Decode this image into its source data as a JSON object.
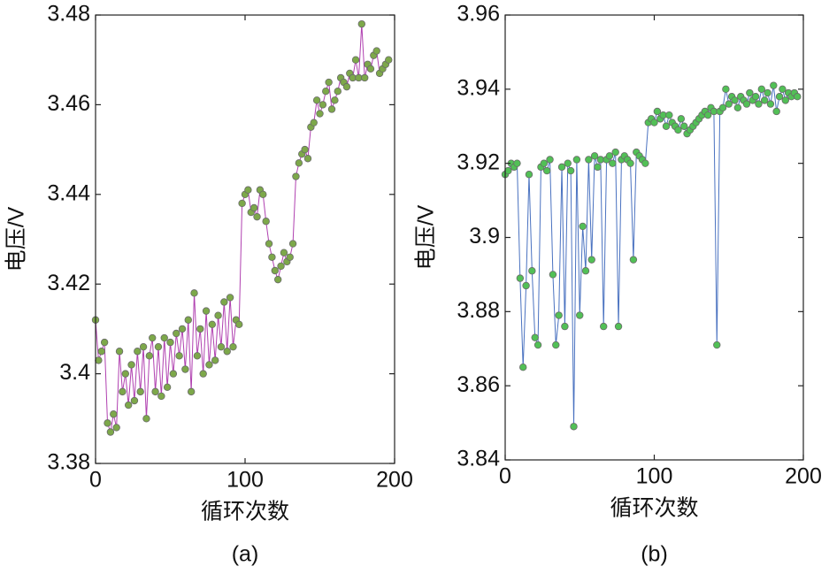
{
  "chart_data": [
    {
      "type": "line",
      "caption": "(a)",
      "xlabel": "循环次数",
      "ylabel": "电压/V",
      "x": [
        0,
        2,
        4,
        6,
        8,
        10,
        12,
        14,
        16,
        18,
        20,
        22,
        24,
        26,
        28,
        30,
        32,
        34,
        36,
        38,
        40,
        42,
        44,
        46,
        48,
        50,
        52,
        54,
        56,
        58,
        60,
        62,
        64,
        66,
        68,
        70,
        72,
        74,
        76,
        78,
        80,
        82,
        84,
        86,
        88,
        90,
        92,
        94,
        96,
        98,
        100,
        102,
        104,
        106,
        108,
        110,
        112,
        114,
        116,
        118,
        120,
        122,
        124,
        126,
        128,
        130,
        132,
        134,
        136,
        138,
        140,
        142,
        144,
        146,
        148,
        150,
        152,
        154,
        156,
        158,
        160,
        162,
        164,
        166,
        168,
        170,
        172,
        174,
        176,
        178,
        180,
        182,
        184,
        186,
        188,
        190,
        192,
        194,
        196
      ],
      "series": [
        {
          "color": "#b040b0",
          "marker_color": "#7da84a",
          "values": [
            3.412,
            3.403,
            3.405,
            3.407,
            3.389,
            3.387,
            3.391,
            3.388,
            3.405,
            3.396,
            3.4,
            3.393,
            3.402,
            3.394,
            3.405,
            3.396,
            3.406,
            3.39,
            3.404,
            3.408,
            3.396,
            3.406,
            3.395,
            3.408,
            3.397,
            3.407,
            3.4,
            3.409,
            3.404,
            3.41,
            3.401,
            3.412,
            3.396,
            3.418,
            3.404,
            3.41,
            3.4,
            3.414,
            3.402,
            3.411,
            3.403,
            3.413,
            3.406,
            3.416,
            3.405,
            3.417,
            3.406,
            3.412,
            3.411,
            3.438,
            3.44,
            3.441,
            3.436,
            3.437,
            3.435,
            3.441,
            3.44,
            3.434,
            3.429,
            3.426,
            3.423,
            3.421,
            3.424,
            3.427,
            3.425,
            3.426,
            3.429,
            3.444,
            3.447,
            3.449,
            3.45,
            3.448,
            3.455,
            3.456,
            3.461,
            3.458,
            3.46,
            3.463,
            3.465,
            3.459,
            3.461,
            3.463,
            3.466,
            3.465,
            3.464,
            3.467,
            3.466,
            3.47,
            3.466,
            3.478,
            3.466,
            3.469,
            3.468,
            3.471,
            3.472,
            3.467,
            3.468,
            3.469,
            3.47
          ]
        }
      ],
      "xlim": [
        0,
        200
      ],
      "xticks": [
        0,
        100,
        200
      ],
      "ylim": [
        3.38,
        3.48
      ],
      "yticks": [
        3.38,
        3.4,
        3.42,
        3.44,
        3.46,
        3.48
      ]
    },
    {
      "type": "line",
      "caption": "(b)",
      "xlabel": "循环次数",
      "ylabel": "电压/V",
      "x": [
        0,
        2,
        4,
        6,
        8,
        10,
        12,
        14,
        16,
        18,
        20,
        22,
        24,
        26,
        28,
        30,
        32,
        34,
        36,
        38,
        40,
        42,
        44,
        46,
        48,
        50,
        52,
        54,
        56,
        58,
        60,
        62,
        64,
        66,
        68,
        70,
        72,
        74,
        76,
        78,
        80,
        82,
        84,
        86,
        88,
        90,
        92,
        94,
        96,
        98,
        100,
        102,
        104,
        106,
        108,
        110,
        112,
        114,
        116,
        118,
        120,
        122,
        124,
        126,
        128,
        130,
        132,
        134,
        136,
        138,
        140,
        142,
        144,
        146,
        148,
        150,
        152,
        154,
        156,
        158,
        160,
        162,
        164,
        166,
        168,
        170,
        172,
        174,
        176,
        178,
        180,
        182,
        184,
        186,
        188,
        190,
        192,
        194,
        196
      ],
      "series": [
        {
          "color": "#4a72c0",
          "marker_color": "#52c056",
          "values": [
            3.917,
            3.918,
            3.92,
            3.919,
            3.92,
            3.889,
            3.865,
            3.887,
            3.917,
            3.891,
            3.873,
            3.871,
            3.919,
            3.92,
            3.918,
            3.921,
            3.89,
            3.871,
            3.879,
            3.919,
            3.876,
            3.92,
            3.918,
            3.849,
            3.921,
            3.879,
            3.903,
            3.891,
            3.921,
            3.894,
            3.922,
            3.919,
            3.921,
            3.876,
            3.921,
            3.922,
            3.92,
            3.923,
            3.876,
            3.921,
            3.922,
            3.921,
            3.92,
            3.894,
            3.923,
            3.922,
            3.921,
            3.92,
            3.931,
            3.932,
            3.931,
            3.934,
            3.932,
            3.933,
            3.93,
            3.933,
            3.931,
            3.93,
            3.929,
            3.932,
            3.93,
            3.928,
            3.929,
            3.93,
            3.931,
            3.932,
            3.933,
            3.934,
            3.933,
            3.935,
            3.934,
            3.871,
            3.934,
            3.935,
            3.94,
            3.936,
            3.938,
            3.937,
            3.935,
            3.938,
            3.937,
            3.936,
            3.939,
            3.937,
            3.938,
            3.936,
            3.94,
            3.937,
            3.939,
            3.936,
            3.941,
            3.934,
            3.938,
            3.94,
            3.937,
            3.939,
            3.938,
            3.939,
            3.938
          ]
        }
      ],
      "xlim": [
        0,
        200
      ],
      "xticks": [
        0,
        100,
        200
      ],
      "ylim": [
        3.84,
        3.96
      ],
      "yticks": [
        3.84,
        3.86,
        3.88,
        3.9,
        3.92,
        3.94,
        3.96
      ]
    }
  ]
}
